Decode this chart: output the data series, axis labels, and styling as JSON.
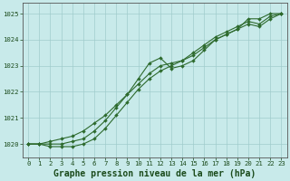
{
  "title": "Graphe pression niveau de la mer (hPa)",
  "xlabel_hours": [
    0,
    1,
    2,
    3,
    4,
    5,
    6,
    7,
    8,
    9,
    10,
    11,
    12,
    13,
    14,
    15,
    16,
    17,
    18,
    19,
    20,
    21,
    22,
    23
  ],
  "line1": [
    1020.0,
    1020.0,
    1020.1,
    1020.2,
    1020.3,
    1020.5,
    1020.8,
    1021.1,
    1021.5,
    1021.9,
    1022.3,
    1022.7,
    1023.0,
    1023.1,
    1023.2,
    1023.5,
    1023.8,
    1024.1,
    1024.3,
    1024.5,
    1024.7,
    1024.6,
    1024.9,
    1025.0
  ],
  "line2": [
    1020.0,
    1020.0,
    1020.0,
    1020.0,
    1020.1,
    1020.2,
    1020.5,
    1020.9,
    1021.4,
    1021.9,
    1022.5,
    1023.1,
    1023.3,
    1022.9,
    1023.0,
    1023.2,
    1023.6,
    1024.0,
    1024.2,
    1024.4,
    1024.8,
    1024.8,
    1025.0,
    1025.0
  ],
  "line3": [
    1020.0,
    1020.0,
    1019.9,
    1019.9,
    1019.9,
    1020.0,
    1020.2,
    1020.6,
    1021.1,
    1021.6,
    1022.1,
    1022.5,
    1022.8,
    1023.0,
    1023.2,
    1023.4,
    1023.7,
    1024.0,
    1024.2,
    1024.4,
    1024.6,
    1024.5,
    1024.8,
    1025.0
  ],
  "line_color": "#2d6a2d",
  "bg_color": "#c8eaea",
  "grid_color": "#a0cccc",
  "ylabel_values": [
    1020,
    1021,
    1022,
    1023,
    1024,
    1025
  ],
  "ylim": [
    1019.5,
    1025.4
  ],
  "xlim": [
    -0.5,
    23.5
  ],
  "marker": "D",
  "marker_size": 2.0,
  "line_width": 0.8,
  "title_fontsize": 7.0,
  "tick_fontsize": 5.2,
  "title_color": "#1a4a1a",
  "tick_color": "#1a4a1a",
  "figsize": [
    3.2,
    2.0
  ],
  "dpi": 100
}
